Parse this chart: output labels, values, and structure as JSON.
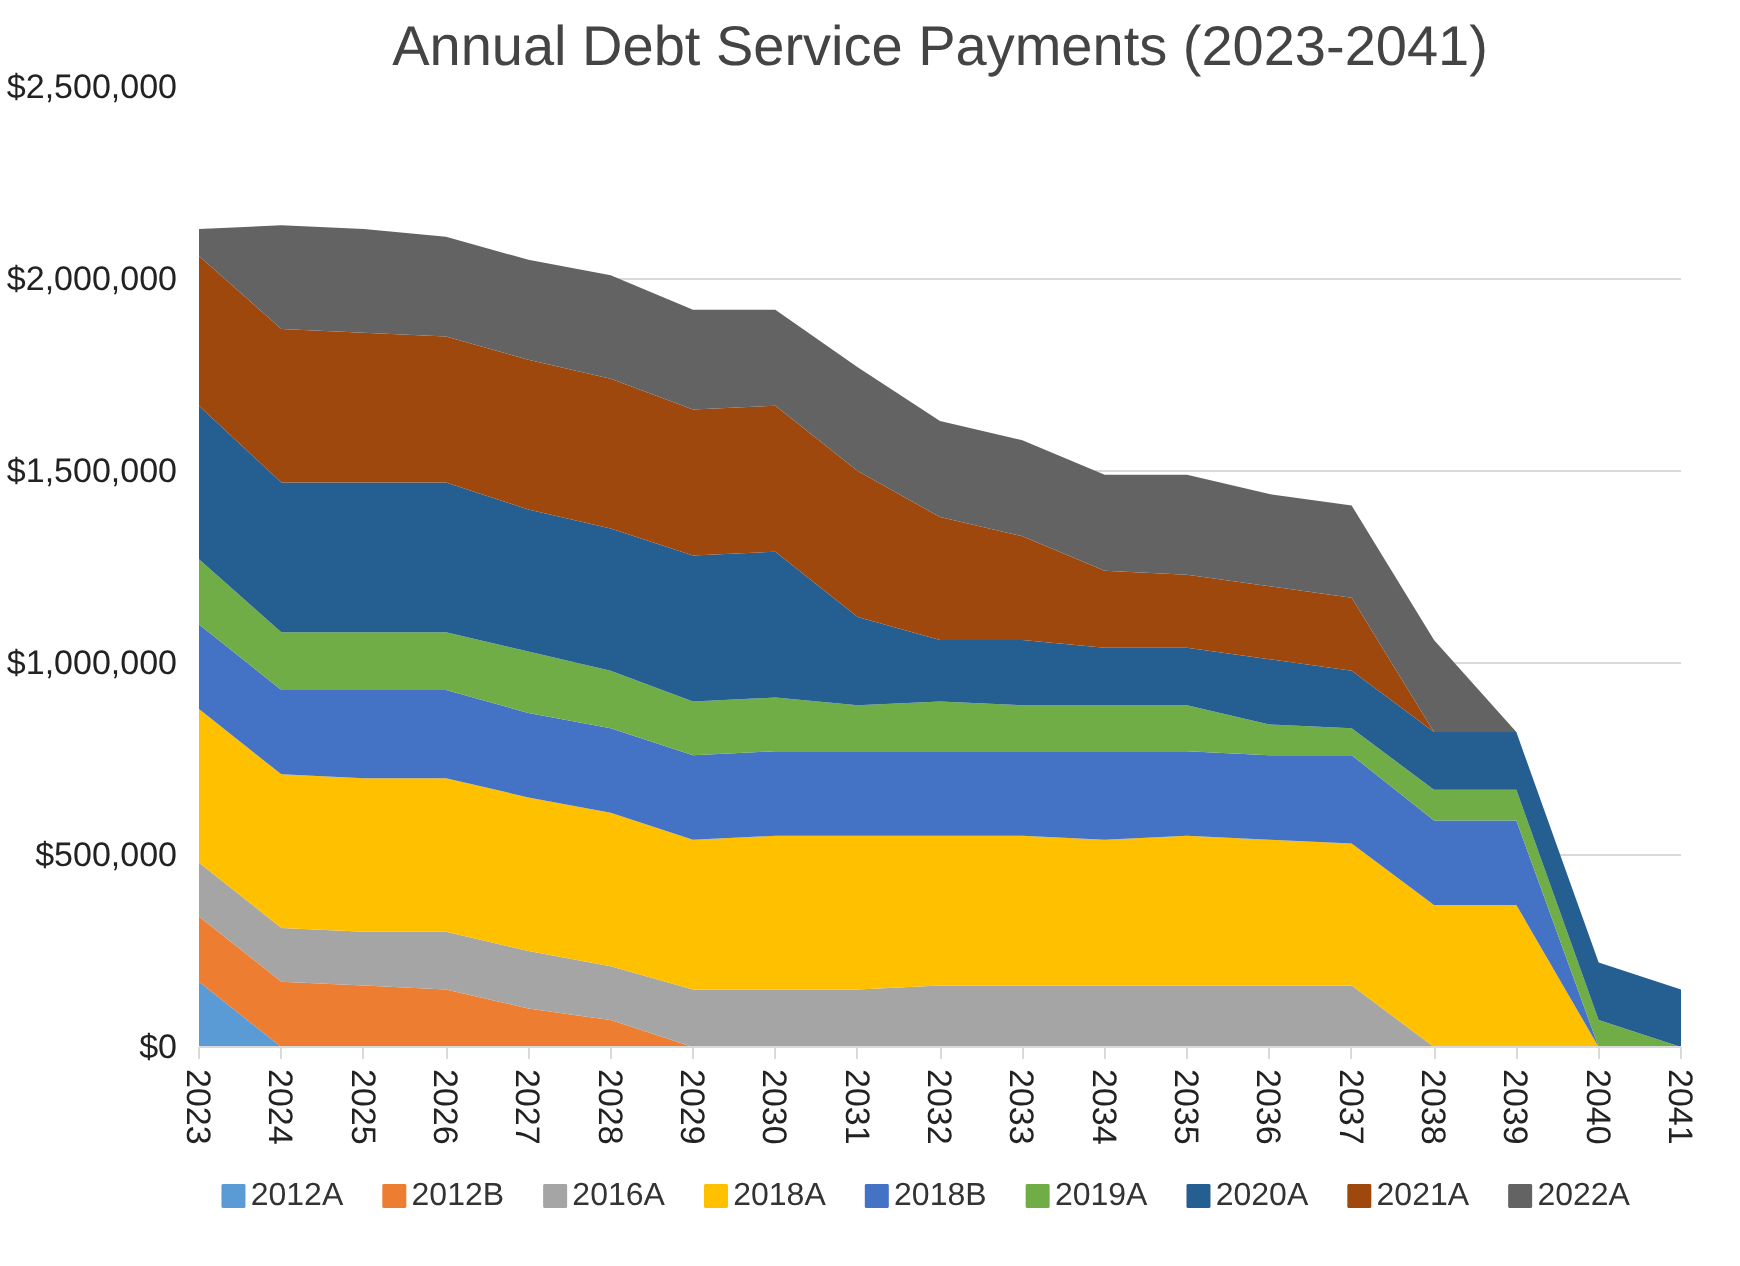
{
  "chart_data": {
    "type": "area",
    "stacked": true,
    "title": "Annual Debt Service Payments (2023-2041)",
    "categories": [
      "2023",
      "2024",
      "2025",
      "2026",
      "2027",
      "2028",
      "2029",
      "2030",
      "2031",
      "2032",
      "2033",
      "2034",
      "2035",
      "2036",
      "2037",
      "2038",
      "2039",
      "2040",
      "2041"
    ],
    "ylim": [
      0,
      2500000
    ],
    "yticks": [
      {
        "value": 0,
        "label": "$0"
      },
      {
        "value": 500000,
        "label": "$500,000"
      },
      {
        "value": 1000000,
        "label": "$1,000,000"
      },
      {
        "value": 1500000,
        "label": "$1,500,000"
      },
      {
        "value": 2000000,
        "label": "$2,000,000"
      },
      {
        "value": 2500000,
        "label": "$2,500,000"
      }
    ],
    "grid": "y",
    "legend": "bottom",
    "series": [
      {
        "name": "2012A",
        "color": "#5b9bd5",
        "values": [
          170000,
          0,
          0,
          0,
          0,
          0,
          0,
          0,
          0,
          0,
          0,
          0,
          0,
          0,
          0,
          0,
          0,
          0,
          0
        ]
      },
      {
        "name": "2012B",
        "color": "#ed7d31",
        "values": [
          170000,
          170000,
          160000,
          150000,
          100000,
          70000,
          0,
          0,
          0,
          0,
          0,
          0,
          0,
          0,
          0,
          0,
          0,
          0,
          0
        ]
      },
      {
        "name": "2016A",
        "color": "#a5a5a5",
        "values": [
          140000,
          140000,
          140000,
          150000,
          150000,
          140000,
          150000,
          150000,
          150000,
          160000,
          160000,
          160000,
          160000,
          160000,
          160000,
          0,
          0,
          0,
          0
        ]
      },
      {
        "name": "2018A",
        "color": "#ffc000",
        "values": [
          400000,
          400000,
          400000,
          400000,
          400000,
          400000,
          390000,
          400000,
          400000,
          390000,
          390000,
          380000,
          390000,
          380000,
          370000,
          370000,
          370000,
          0,
          0
        ]
      },
      {
        "name": "2018B",
        "color": "#4472c4",
        "values": [
          220000,
          220000,
          230000,
          230000,
          220000,
          220000,
          220000,
          220000,
          220000,
          220000,
          220000,
          230000,
          220000,
          220000,
          230000,
          220000,
          220000,
          0,
          0
        ]
      },
      {
        "name": "2019A",
        "color": "#70ad47",
        "values": [
          170000,
          150000,
          150000,
          150000,
          160000,
          150000,
          140000,
          140000,
          120000,
          130000,
          120000,
          120000,
          120000,
          80000,
          70000,
          80000,
          80000,
          70000,
          0
        ]
      },
      {
        "name": "2020A",
        "color": "#255e91",
        "values": [
          400000,
          390000,
          390000,
          390000,
          370000,
          370000,
          380000,
          380000,
          230000,
          160000,
          170000,
          150000,
          150000,
          170000,
          150000,
          150000,
          150000,
          150000,
          150000
        ]
      },
      {
        "name": "2021A",
        "color": "#9e480e",
        "values": [
          390000,
          400000,
          390000,
          380000,
          390000,
          390000,
          380000,
          380000,
          380000,
          320000,
          270000,
          200000,
          190000,
          190000,
          190000,
          0,
          0,
          0,
          0
        ]
      },
      {
        "name": "2022A",
        "color": "#636363",
        "values": [
          70000,
          270000,
          270000,
          260000,
          260000,
          270000,
          260000,
          250000,
          270000,
          250000,
          250000,
          250000,
          260000,
          240000,
          240000,
          240000,
          0,
          0,
          0
        ]
      }
    ]
  }
}
